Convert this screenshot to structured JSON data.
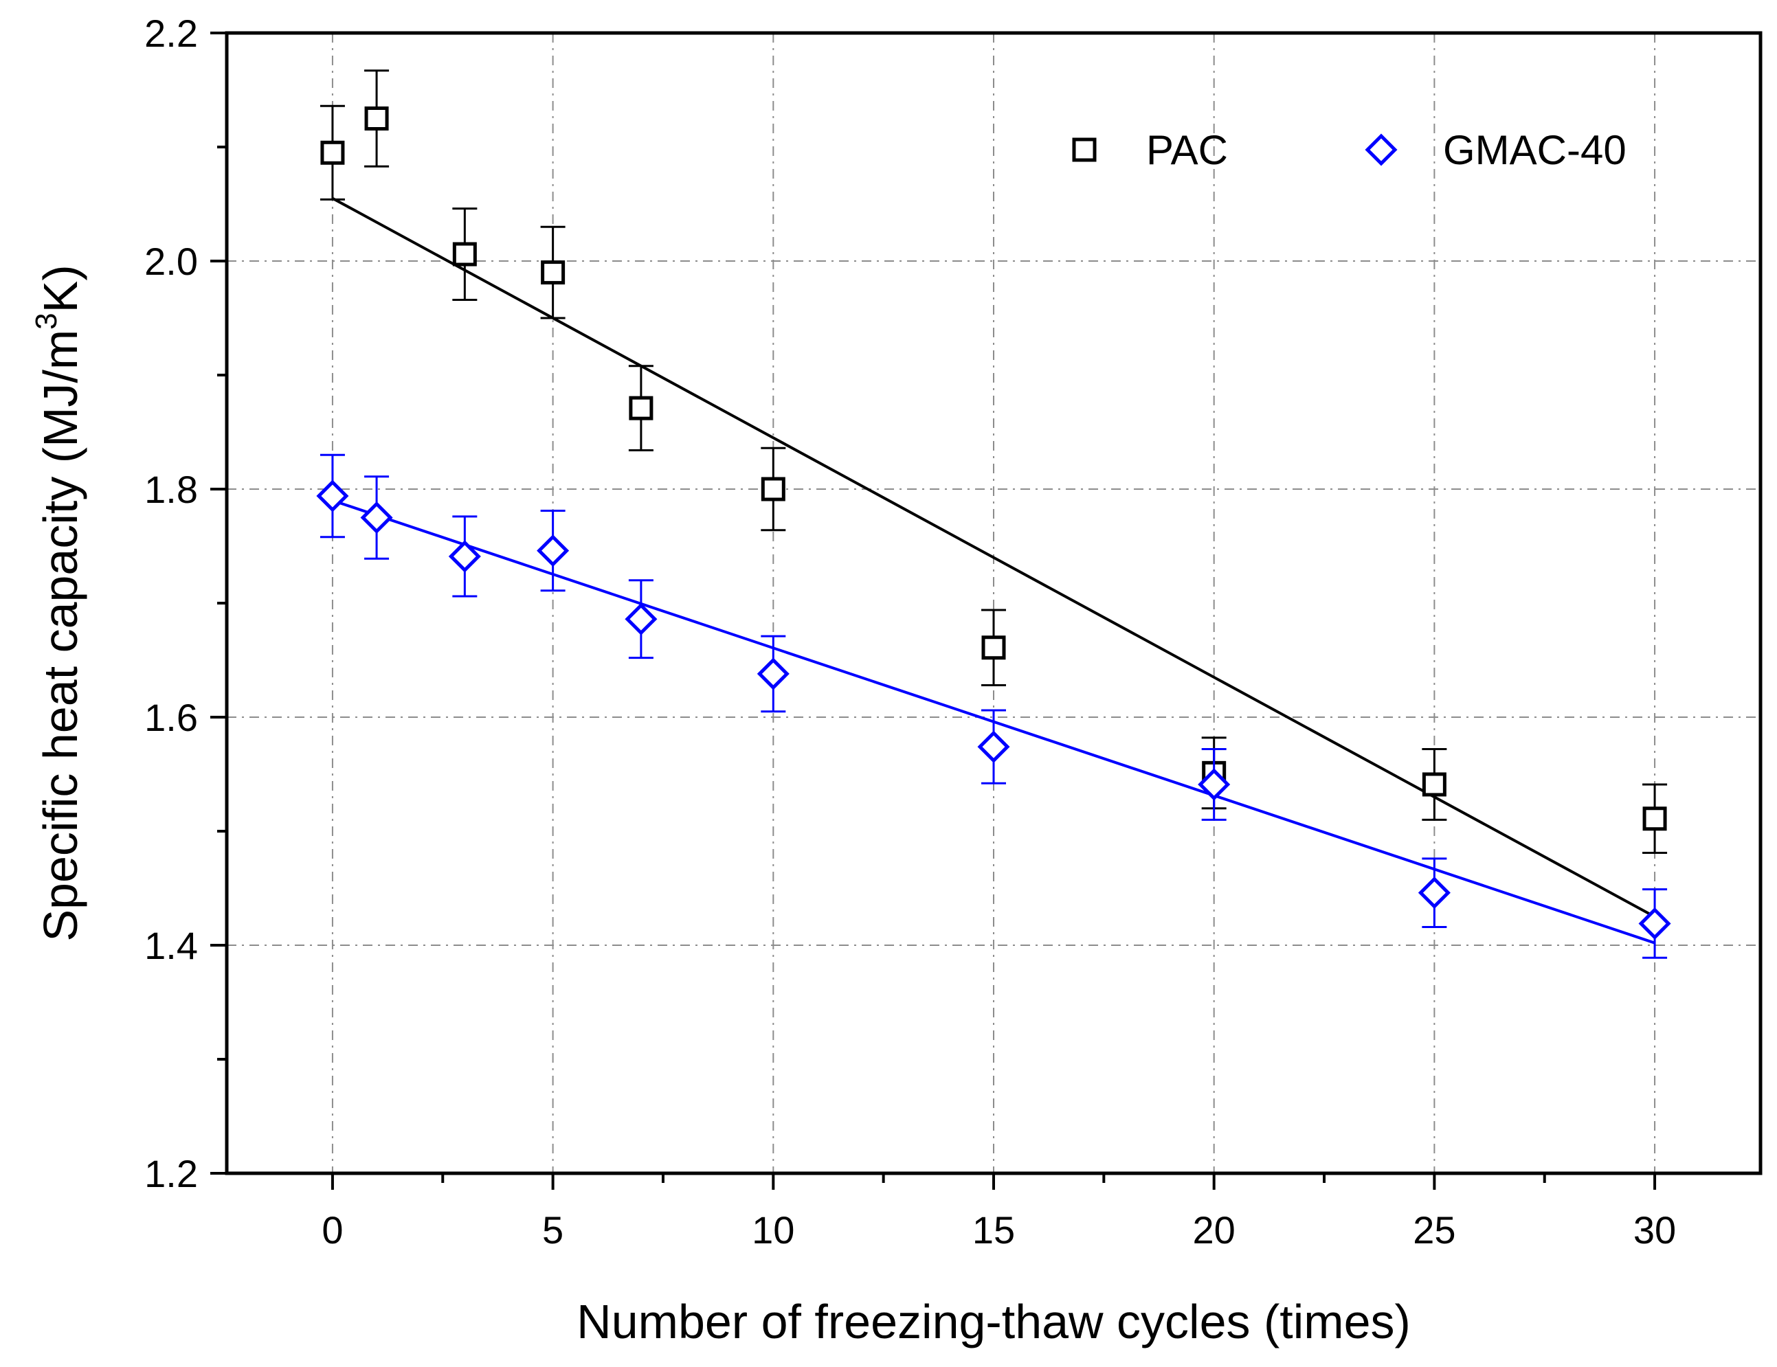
{
  "chart_data": {
    "type": "scatter",
    "title": "",
    "xlabel": "Number of freezing-thaw cycles (times)",
    "ylabel": {
      "main": "Specific heat capacity (MJ/m",
      "sup": "3",
      "end": "K)"
    },
    "xlim": [
      -2.4,
      32.4
    ],
    "ylim": [
      1.2,
      2.2
    ],
    "xticks": [
      0,
      5,
      10,
      15,
      20,
      25,
      30
    ],
    "xtick_labels": [
      "0",
      "5",
      "10",
      "15",
      "20",
      "25",
      "30"
    ],
    "yticks": [
      1.2,
      1.4,
      1.6,
      1.8,
      2.0,
      2.2
    ],
    "ytick_labels": [
      "1.2",
      "1.4",
      "1.6",
      "1.8",
      "2.0",
      "2.2"
    ],
    "grid": true,
    "legend_position": "top-right",
    "series": [
      {
        "name": "PAC",
        "marker": "square",
        "color": "#000000",
        "x": [
          0,
          1,
          3,
          5,
          7,
          10,
          15,
          20,
          25,
          30
        ],
        "y": [
          2.095,
          2.125,
          2.006,
          1.99,
          1.871,
          1.8,
          1.661,
          1.551,
          1.541,
          1.511
        ],
        "error": [
          0.041,
          0.042,
          0.04,
          0.04,
          0.037,
          0.036,
          0.033,
          0.031,
          0.031,
          0.03
        ],
        "fit": {
          "x0": 0,
          "y0": 2.055,
          "x1": 30,
          "y1": 1.425
        }
      },
      {
        "name": "GMAC-40",
        "marker": "diamond",
        "color": "#0000ff",
        "x": [
          0,
          1,
          3,
          5,
          7,
          10,
          15,
          20,
          25,
          30
        ],
        "y": [
          1.794,
          1.775,
          1.741,
          1.746,
          1.686,
          1.638,
          1.574,
          1.541,
          1.446,
          1.419
        ],
        "error": [
          0.036,
          0.036,
          0.035,
          0.035,
          0.034,
          0.033,
          0.032,
          0.031,
          0.03,
          0.03
        ],
        "fit": {
          "x0": 0,
          "y0": 1.79,
          "x1": 30,
          "y1": 1.402
        }
      }
    ]
  }
}
